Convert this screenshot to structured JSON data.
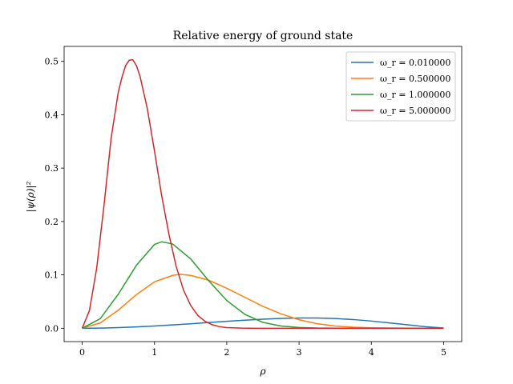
{
  "chart_data": {
    "type": "line",
    "title": "Relative energy of ground state",
    "xlabel": "ρ",
    "ylabel": "|ψ(ρ)|²",
    "xlim": [
      -0.25,
      5.25
    ],
    "ylim": [
      -0.025,
      0.528
    ],
    "xticks": [
      0,
      1,
      2,
      3,
      4,
      5
    ],
    "xtick_labels": [
      "0",
      "1",
      "2",
      "3",
      "4",
      "5"
    ],
    "yticks": [
      0.0,
      0.1,
      0.2,
      0.3,
      0.4,
      0.5
    ],
    "ytick_labels": [
      "0.0",
      "0.1",
      "0.2",
      "0.3",
      "0.4",
      "0.5"
    ],
    "grid": false,
    "legend_position": "top-right",
    "series": [
      {
        "name": "ω_r = 0.010000",
        "color": "#1f77b4",
        "x": [
          0,
          0.25,
          0.5,
          0.75,
          1.0,
          1.25,
          1.5,
          1.75,
          2.0,
          2.25,
          2.5,
          2.75,
          3.0,
          3.25,
          3.5,
          3.75,
          4.0,
          4.25,
          4.5,
          4.75,
          5.0
        ],
        "y": [
          0.0,
          0.0003,
          0.0012,
          0.0025,
          0.0042,
          0.0062,
          0.0084,
          0.0107,
          0.013,
          0.0151,
          0.017,
          0.0185,
          0.0193,
          0.0193,
          0.0183,
          0.0163,
          0.0135,
          0.01,
          0.0065,
          0.003,
          0.0005
        ]
      },
      {
        "name": "ω_r = 0.500000",
        "color": "#ff7f0e",
        "x": [
          0,
          0.25,
          0.5,
          0.75,
          1.0,
          1.25,
          1.35,
          1.5,
          1.75,
          2.0,
          2.25,
          2.5,
          2.75,
          3.0,
          3.25,
          3.5,
          3.75,
          4.0,
          4.5,
          5.0
        ],
        "y": [
          0.0,
          0.01,
          0.034,
          0.063,
          0.087,
          0.099,
          0.101,
          0.099,
          0.09,
          0.075,
          0.058,
          0.041,
          0.027,
          0.016,
          0.0085,
          0.0042,
          0.0019,
          0.0008,
          0.0001,
          0.0
        ]
      },
      {
        "name": "ω_r = 1.000000",
        "color": "#2ca02c",
        "x": [
          0,
          0.25,
          0.5,
          0.75,
          1.0,
          1.1,
          1.25,
          1.5,
          1.75,
          2.0,
          2.25,
          2.5,
          2.75,
          3.0,
          3.25,
          3.5,
          4.0,
          4.5,
          5.0
        ],
        "y": [
          0.0,
          0.018,
          0.064,
          0.118,
          0.157,
          0.162,
          0.158,
          0.13,
          0.089,
          0.052,
          0.026,
          0.011,
          0.0043,
          0.0015,
          0.0004,
          0.0001,
          0.0,
          0.0,
          0.0
        ]
      },
      {
        "name": "ω_r = 5.000000",
        "color": "#d62728",
        "x": [
          0,
          0.1,
          0.2,
          0.3,
          0.4,
          0.5,
          0.55,
          0.6,
          0.65,
          0.7,
          0.75,
          0.8,
          0.9,
          1.0,
          1.1,
          1.2,
          1.3,
          1.4,
          1.5,
          1.6,
          1.7,
          1.8,
          1.9,
          2.0,
          2.2,
          2.4,
          2.7,
          3.0,
          5.0
        ],
        "y": [
          0.0,
          0.033,
          0.112,
          0.228,
          0.356,
          0.443,
          0.47,
          0.492,
          0.502,
          0.503,
          0.492,
          0.472,
          0.412,
          0.332,
          0.248,
          0.176,
          0.116,
          0.072,
          0.043,
          0.024,
          0.013,
          0.0065,
          0.003,
          0.0013,
          0.0002,
          0.0,
          0.0,
          0.0,
          0.0
        ]
      }
    ]
  }
}
